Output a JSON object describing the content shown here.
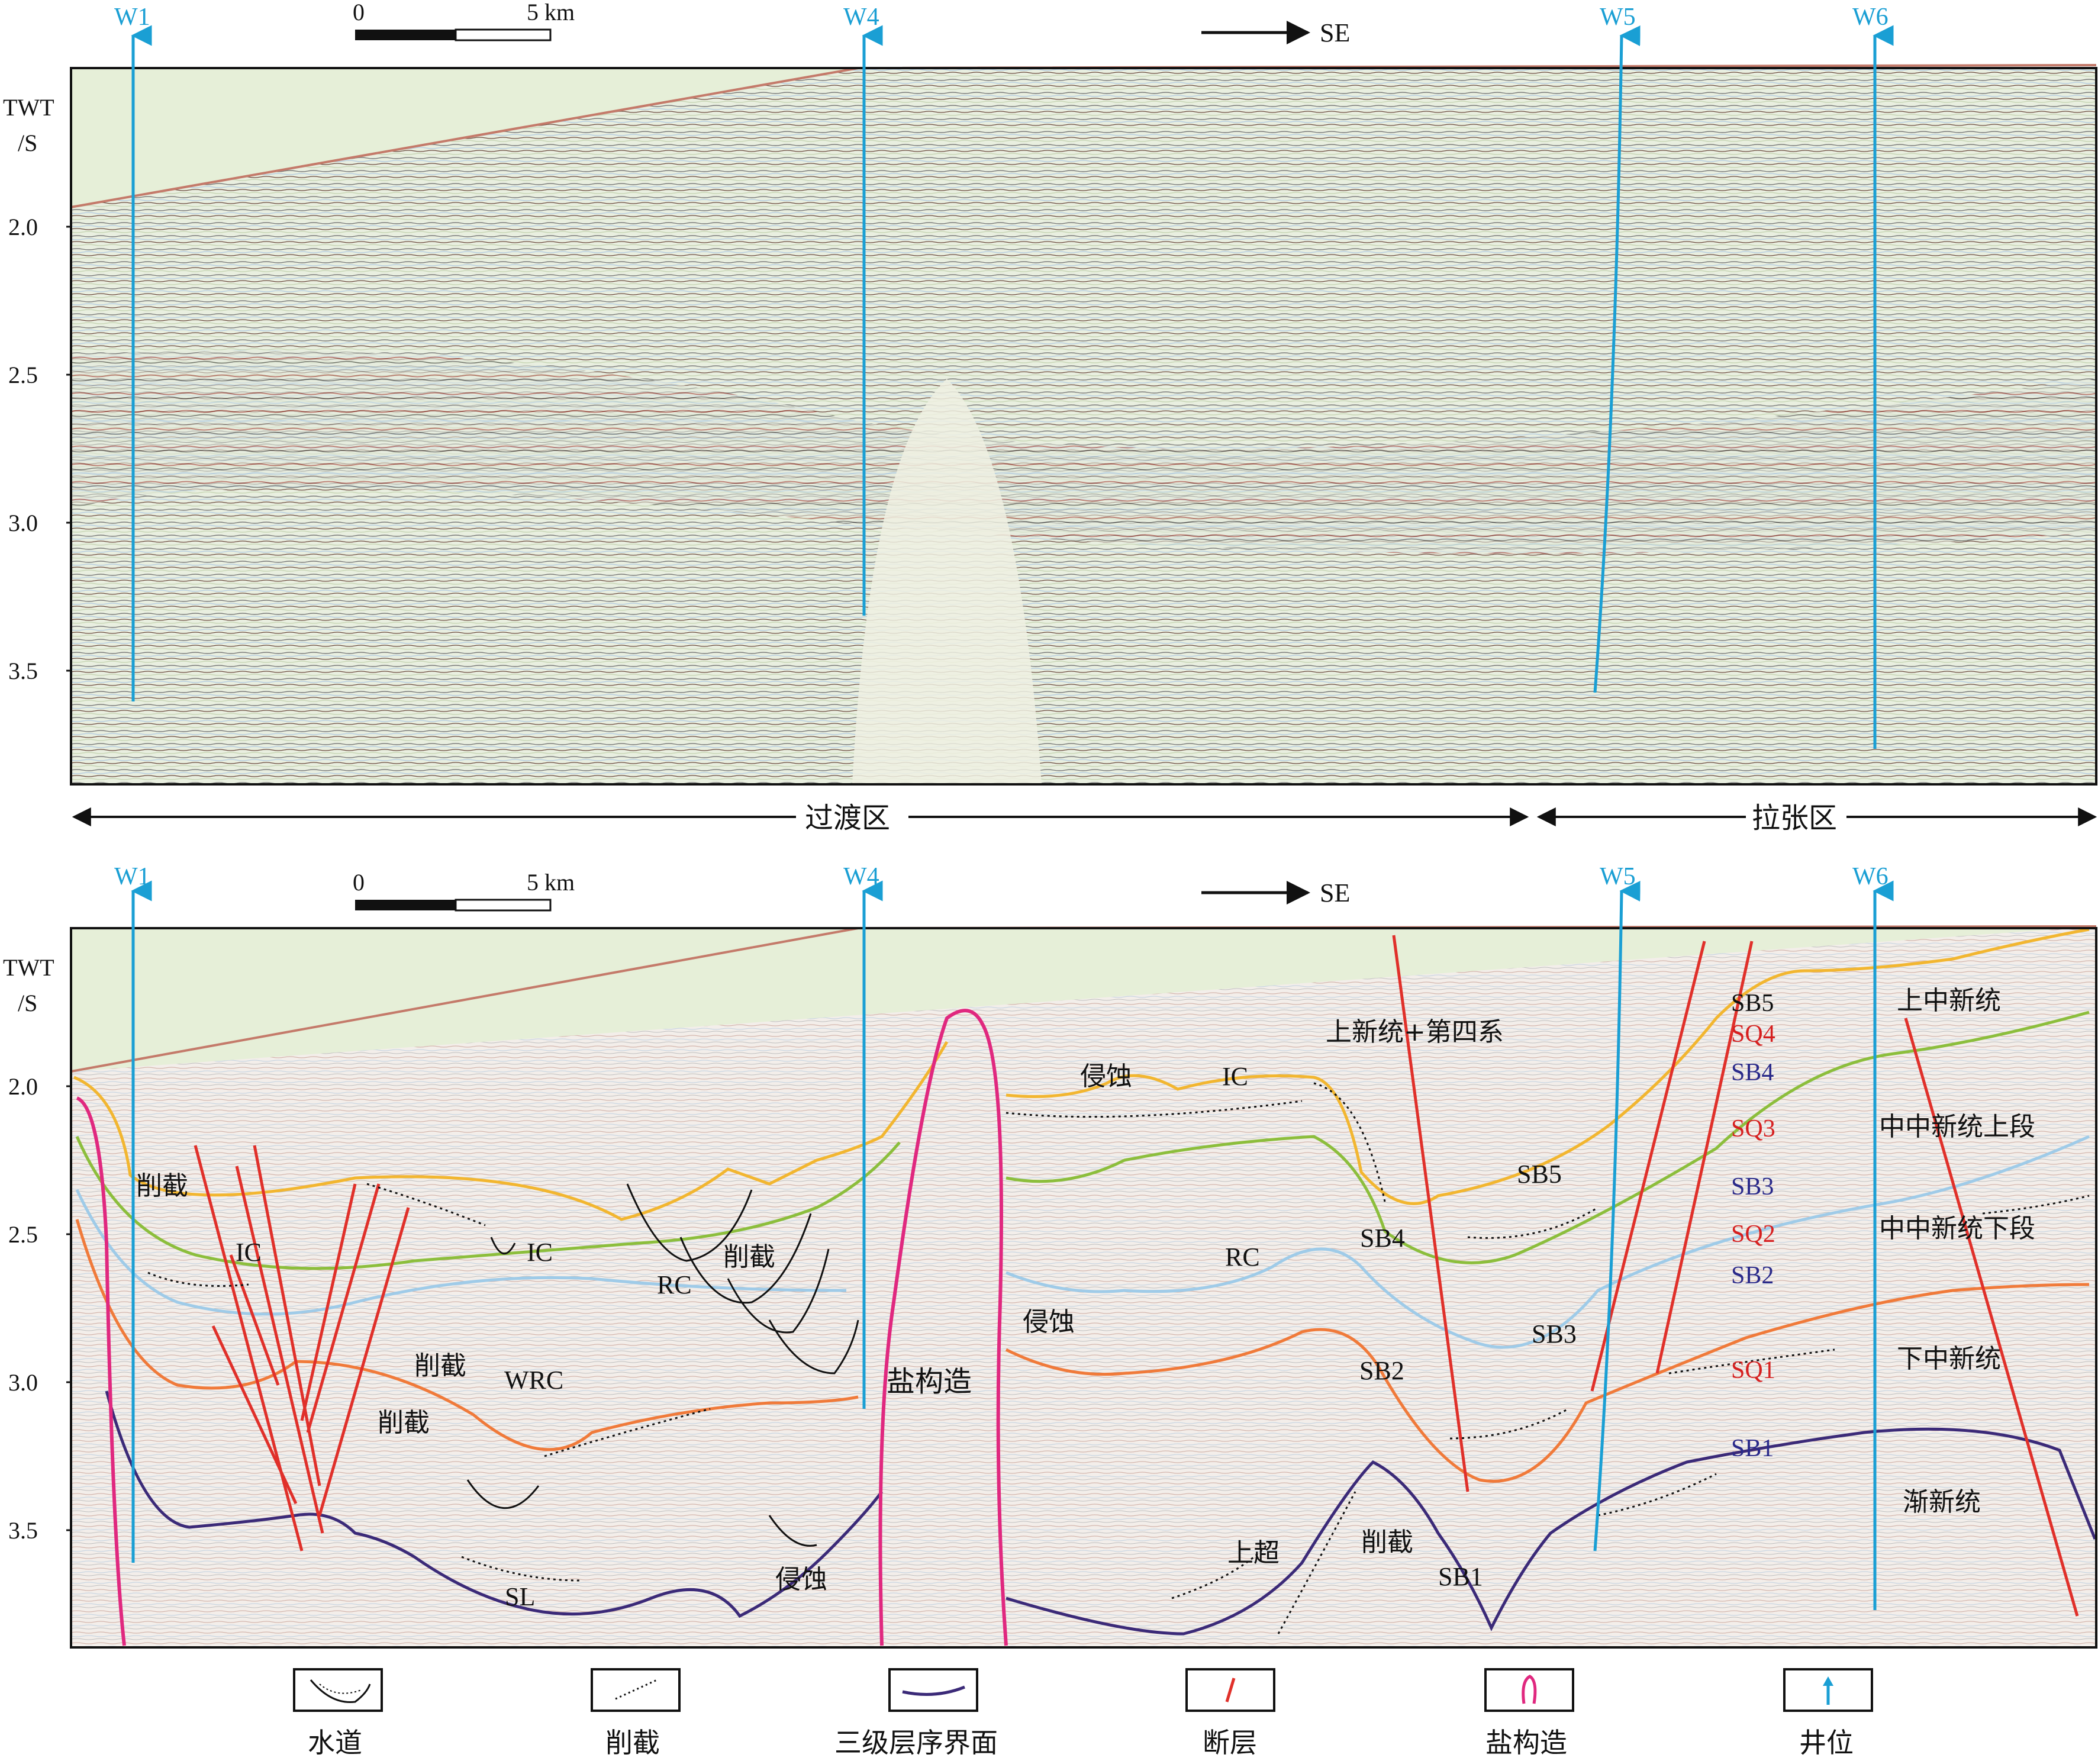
{
  "top_panel": {
    "axis_title_line1": "TWT",
    "axis_title_line2": "/S",
    "ticks": [
      "2.0",
      "2.5",
      "3.0",
      "3.5"
    ],
    "wells": [
      "W1",
      "W4",
      "W5",
      "W6"
    ],
    "scale_zero": "0",
    "scale_end": "5 km",
    "direction": "SE"
  },
  "zones": {
    "transition": "过渡区",
    "extension": "拉张区"
  },
  "bottom_panel": {
    "axis_title_line1": "TWT",
    "axis_title_line2": "/S",
    "ticks": [
      "2.0",
      "2.5",
      "3.0",
      "3.5"
    ],
    "wells": [
      "W1",
      "W4",
      "W5",
      "W6"
    ],
    "scale_zero": "0",
    "scale_end": "5 km",
    "direction": "SE",
    "annotations": {
      "truncation_a": "削截",
      "ic_a": "IC",
      "ic_b": "IC",
      "rc_a": "RC",
      "truncation_b": "削截",
      "truncation_c": "削截",
      "truncation_d": "削截",
      "wrc": "WRC",
      "sl": "SL",
      "erosion_a": "侵蚀",
      "salt_structure": "盐构造",
      "erosion_b": "侵蚀",
      "ic_c": "IC",
      "erosion_c": "侵蚀",
      "rc_b": "RC",
      "pliocene_quaternary": "上新统+第四系",
      "sb5_a": "SB5",
      "sb4_a": "SB4",
      "sb3_a": "SB3",
      "sb2_a": "SB2",
      "onlap": "上超",
      "truncation_e": "削截",
      "sb1_a": "SB1"
    },
    "sequence_column": [
      {
        "text": "SB5",
        "color": "#111111"
      },
      {
        "text": "SQ4",
        "color": "#d62020"
      },
      {
        "text": "SB4",
        "color": "#2a2a8a"
      },
      {
        "text": "SQ3",
        "color": "#d62020"
      },
      {
        "text": "SB3",
        "color": "#2a2a8a"
      },
      {
        "text": "SQ2",
        "color": "#d62020"
      },
      {
        "text": "SB2",
        "color": "#2a2a8a"
      },
      {
        "text": "SQ1",
        "color": "#d62020"
      },
      {
        "text": "SB1",
        "color": "#2a2a8a"
      }
    ],
    "stratigraphy": [
      "上中新统",
      "中中新统上段",
      "中中新统下段",
      "下中新统",
      "渐新统"
    ]
  },
  "legend": [
    {
      "label": "水道",
      "icon": "channel-icon"
    },
    {
      "label": "削截",
      "icon": "truncation-icon"
    },
    {
      "label": "三级层序界面",
      "icon": "sequence-boundary-icon"
    },
    {
      "label": "断层",
      "icon": "fault-icon"
    },
    {
      "label": "盐构造",
      "icon": "salt-structure-icon"
    },
    {
      "label": "井位",
      "icon": "well-icon"
    }
  ],
  "colors": {
    "well": "#1a9fd4",
    "fault": "#e0302a",
    "salt": "#e0287f",
    "sb5": "#f2b630",
    "sb4": "#8cbe3c",
    "sb3": "#9fcbe8",
    "sb2": "#f07a3a",
    "sb1": "#3b2a78",
    "water": "#e6efd8"
  }
}
